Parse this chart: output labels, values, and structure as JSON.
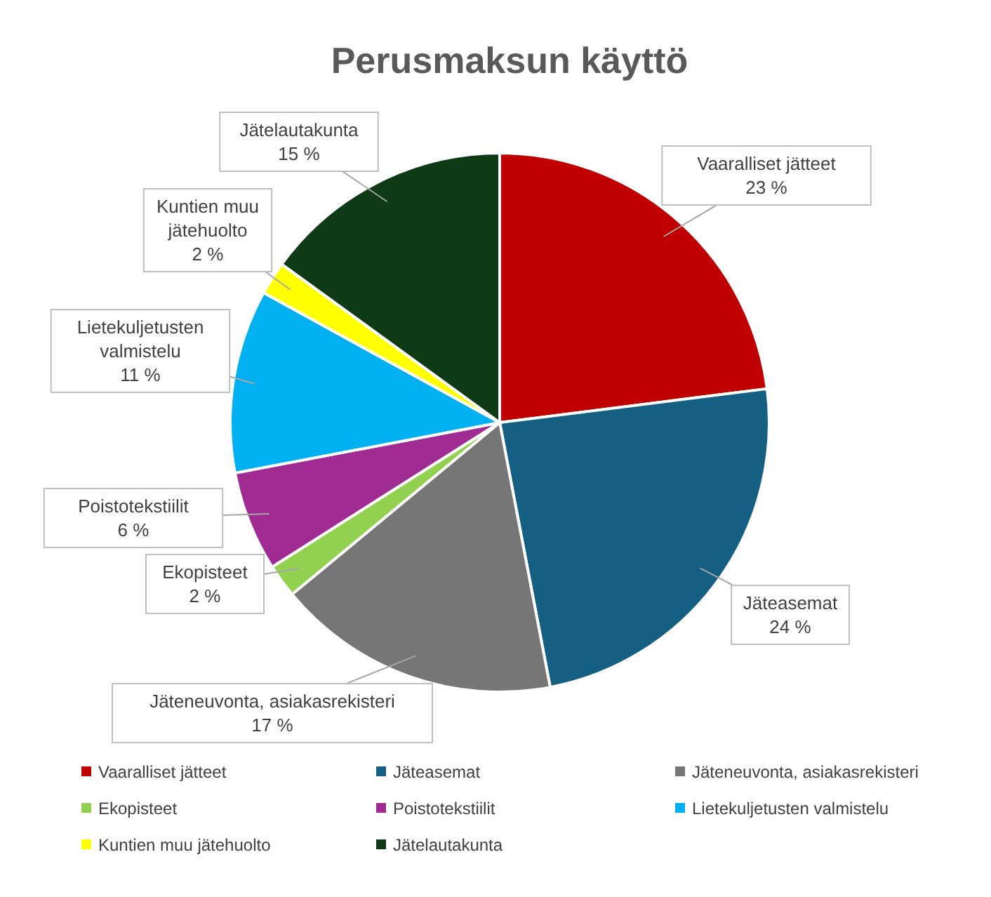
{
  "chart_data": {
    "type": "pie",
    "title": "Perusmaksun käyttö",
    "categories": [
      "Vaaralliset jätteet",
      "Jäteasemat",
      "Jäteneuvonta, asiakasrekisteri",
      "Ekopisteet",
      "Poistotekstiilit",
      "Lietekuljetusten valmistelu",
      "Kuntien muu jätehuolto",
      "Jätelautakunta"
    ],
    "values": [
      23,
      24,
      17,
      2,
      6,
      11,
      2,
      15
    ],
    "value_labels": [
      "23 %",
      "24 %",
      "17 %",
      "2 %",
      "6 %",
      "11 %",
      "2 %",
      "15 %"
    ],
    "colors": [
      "#c00000",
      "#156082",
      "#767676",
      "#92d050",
      "#a02b93",
      "#00b0f0",
      "#ffff00",
      "#0e3a16"
    ],
    "legend": "bottom"
  }
}
